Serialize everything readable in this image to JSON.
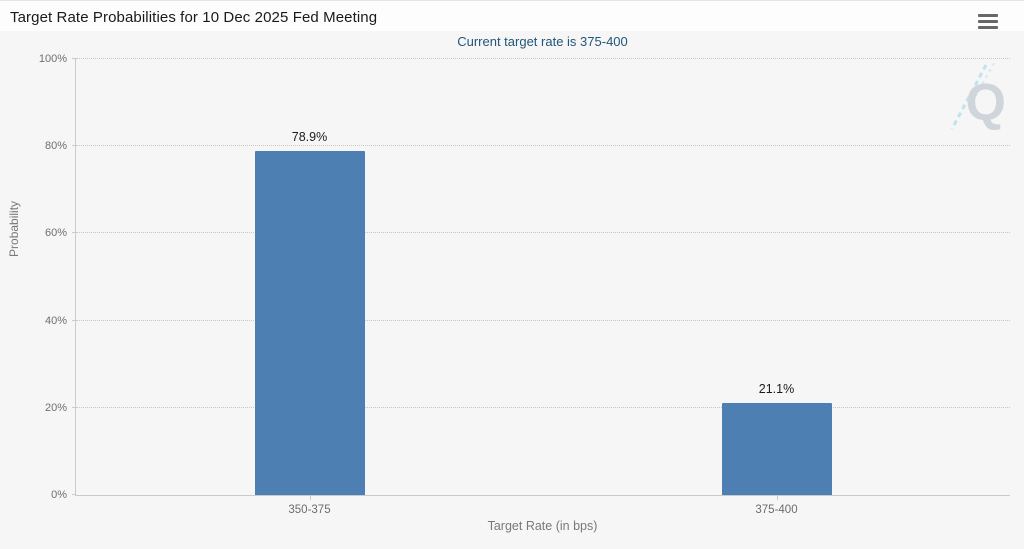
{
  "header": {
    "title": "Target Rate Probabilities for 10 Dec 2025 Fed Meeting",
    "menu_icon": "hamburger-menu-icon"
  },
  "chart_data": {
    "type": "bar",
    "title": "Target Rate Probabilities for 10 Dec 2025 Fed Meeting",
    "subtitle": "Current target rate is 375-400",
    "categories": [
      "350-375",
      "375-400"
    ],
    "values": [
      78.9,
      21.1
    ],
    "value_labels": [
      "78.9%",
      "21.1%"
    ],
    "xlabel": "Target Rate (in bps)",
    "ylabel": "Probability",
    "ylim": [
      0,
      100
    ],
    "yticks": [
      0,
      20,
      40,
      60,
      80,
      100
    ],
    "ytick_labels": [
      "0%",
      "20%",
      "40%",
      "60%",
      "80%",
      "100%"
    ],
    "grid": "horizontal-dotted",
    "legend": "none",
    "bar_color": "#4e7fb2"
  },
  "watermark": {
    "letter": "Q"
  },
  "colors": {
    "background": "#f5f6f5",
    "subtitle_text": "#23557a",
    "bar": "#4e7fb2",
    "axis_line": "#c9cbca",
    "tick_text": "#6e6f6e",
    "watermark_gray": "#cad0d7",
    "watermark_blue": "#b5e2f0"
  }
}
